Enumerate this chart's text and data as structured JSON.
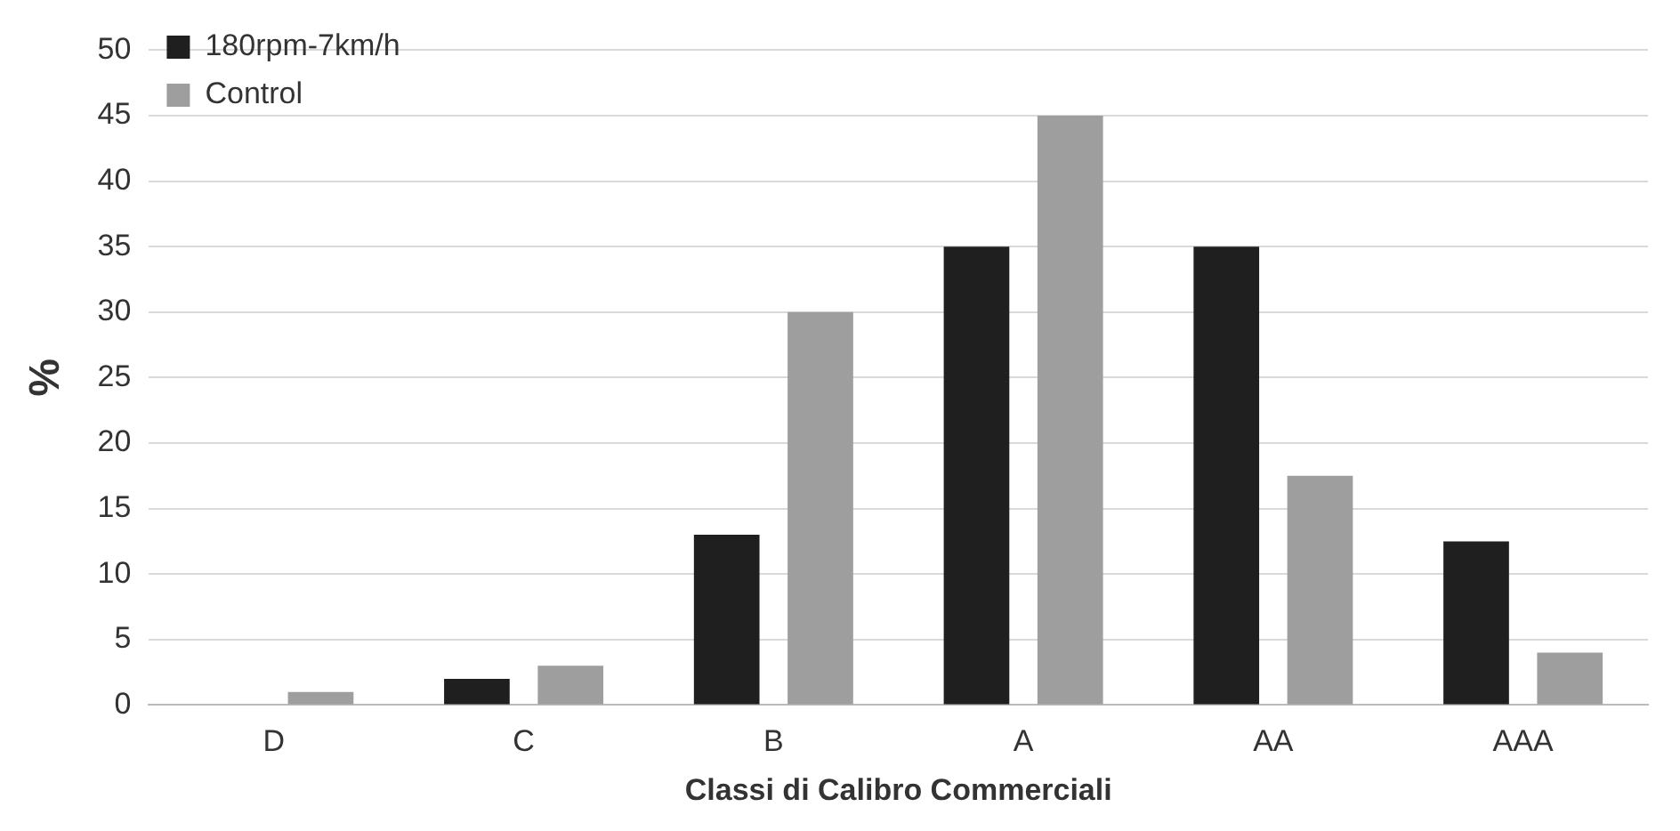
{
  "chart_data": {
    "type": "bar",
    "xlabel": "Classi di Calibro Commerciali",
    "ylabel": "%",
    "categories": [
      "D",
      "C",
      "B",
      "A",
      "AA",
      "AAA"
    ],
    "series": [
      {
        "name": "180rpm-7km/h",
        "color": "#1f1f1f",
        "values": [
          0,
          2,
          13,
          35,
          35,
          12.5
        ]
      },
      {
        "name": "Control",
        "color": "#9e9e9e",
        "values": [
          1,
          3,
          30,
          45,
          17.5,
          4
        ]
      }
    ],
    "ylim": [
      0,
      50
    ],
    "yticks": [
      0,
      5,
      10,
      15,
      20,
      25,
      30,
      35,
      40,
      45,
      50
    ],
    "grid": "y",
    "legend": "top left"
  }
}
